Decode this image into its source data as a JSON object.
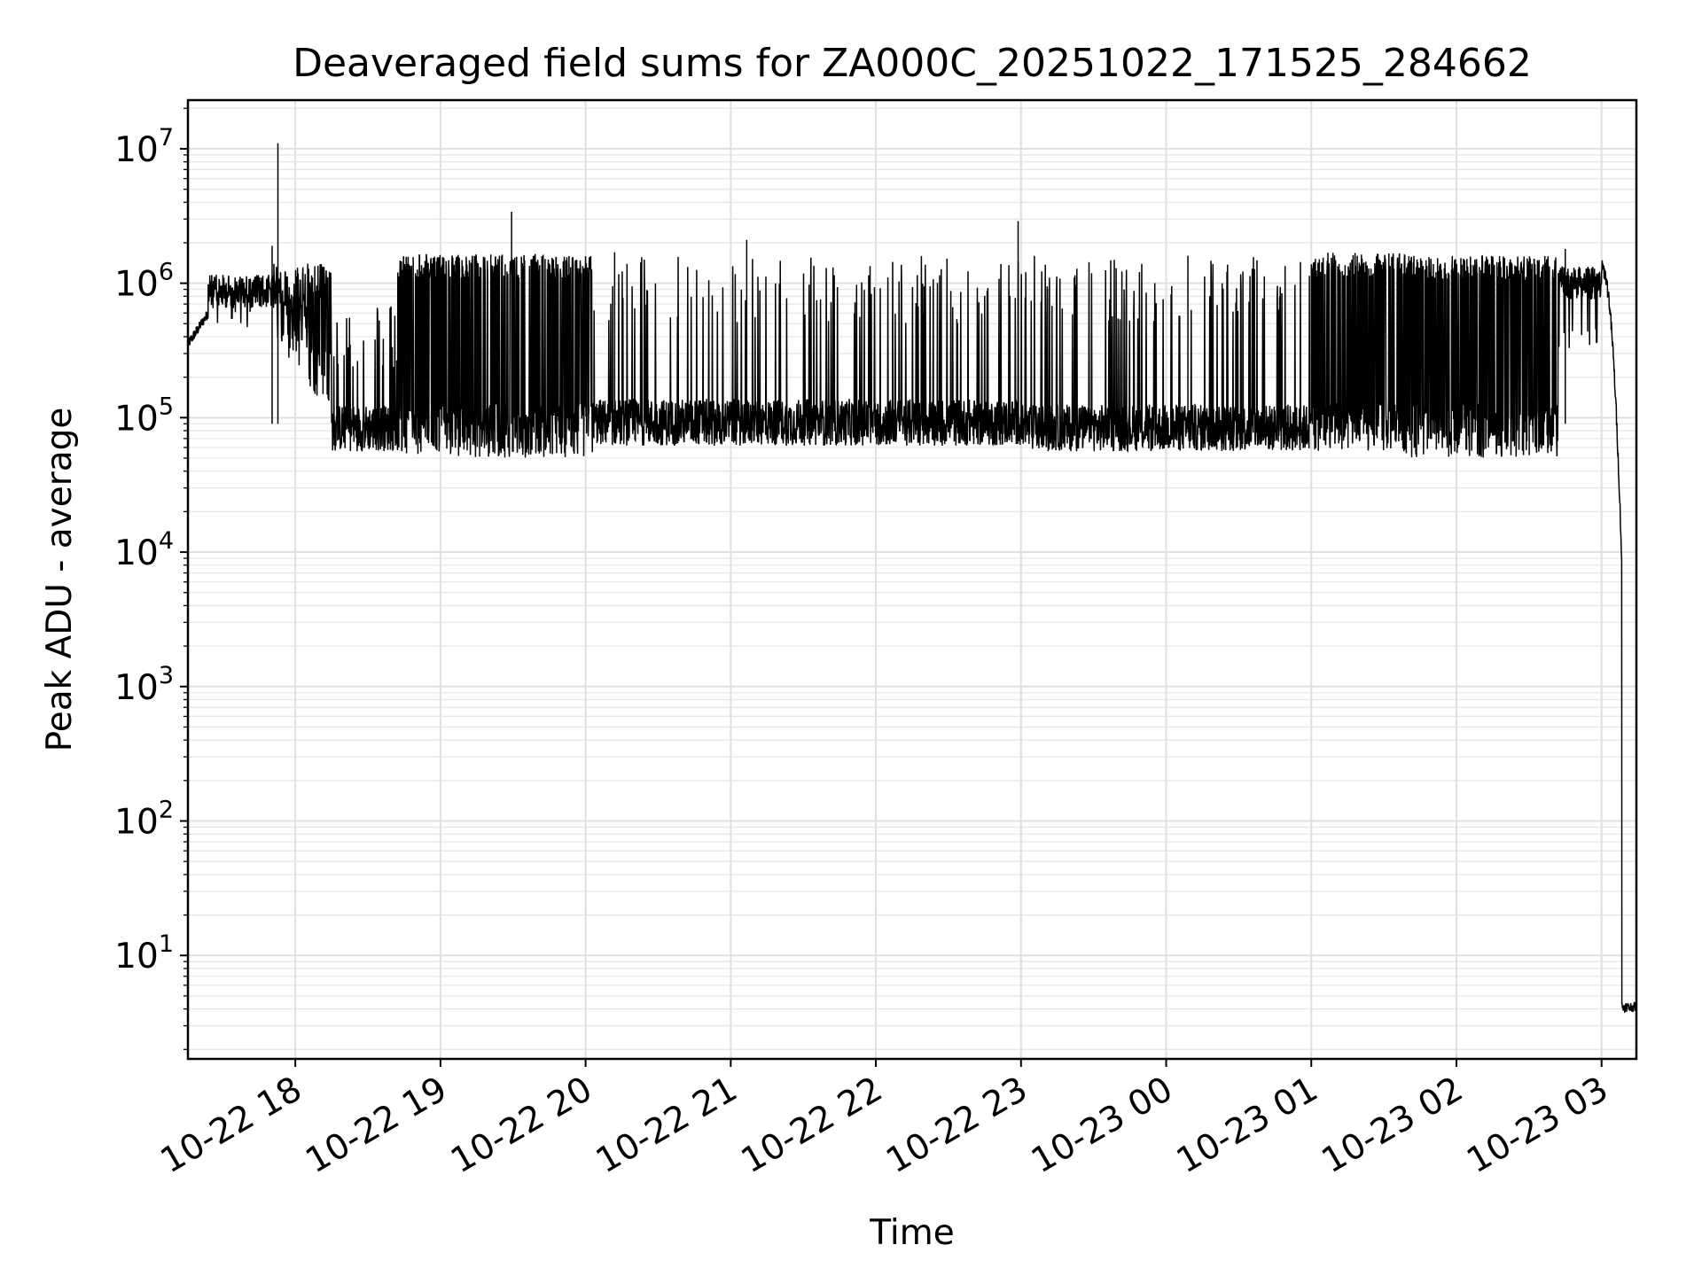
{
  "chart_data": {
    "type": "line",
    "title": "Deaveraged field sums for ZA000C_20251022_171525_284662",
    "xlabel": "Time",
    "ylabel": "Peak ADU - average",
    "yscale": "log",
    "ylim": [
      1.7,
      23000000
    ],
    "xlim_hours": [
      17.26,
      27.24
    ],
    "grid": true,
    "x_ticks": [
      {
        "label": "10-22 18",
        "hour": 18
      },
      {
        "label": "10-22 19",
        "hour": 19
      },
      {
        "label": "10-22 20",
        "hour": 20
      },
      {
        "label": "10-22 21",
        "hour": 21
      },
      {
        "label": "10-22 22",
        "hour": 22
      },
      {
        "label": "10-22 23",
        "hour": 23
      },
      {
        "label": "10-23 00",
        "hour": 24
      },
      {
        "label": "10-23 01",
        "hour": 25
      },
      {
        "label": "10-23 02",
        "hour": 26
      },
      {
        "label": "10-23 03",
        "hour": 27
      }
    ],
    "y_ticks": [
      {
        "base": "10",
        "exp": "1",
        "value": 10
      },
      {
        "base": "10",
        "exp": "2",
        "value": 100
      },
      {
        "base": "10",
        "exp": "3",
        "value": 1000
      },
      {
        "base": "10",
        "exp": "4",
        "value": 10000
      },
      {
        "base": "10",
        "exp": "5",
        "value": 100000
      },
      {
        "base": "10",
        "exp": "6",
        "value": 1000000
      },
      {
        "base": "10",
        "exp": "7",
        "value": 10000000
      }
    ],
    "series": [
      {
        "name": "deaveraged field sum",
        "color": "#000000",
        "segments": [
          {
            "start_hour": 17.26,
            "end_hour": 17.4,
            "low": 350000,
            "high": 600000,
            "pattern": "rising"
          },
          {
            "start_hour": 17.4,
            "end_hour": 17.85,
            "low": 450000,
            "high": 1300000,
            "pattern": "dense-high"
          },
          {
            "start_hour": 17.85,
            "end_hour": 18.25,
            "low": 100000,
            "high": 1400000,
            "pattern": "transition"
          },
          {
            "start_hour": 18.25,
            "end_hour": 18.7,
            "low": 50000,
            "high": 700000,
            "pattern": "base-spiky"
          },
          {
            "start_hour": 18.7,
            "end_hour": 20.05,
            "low": 45000,
            "high": 1650000,
            "pattern": "bimodal"
          },
          {
            "start_hour": 20.05,
            "end_hour": 23.0,
            "low": 55000,
            "high": 1600000,
            "pattern": "base-spiky"
          },
          {
            "start_hour": 23.0,
            "end_hour": 25.0,
            "low": 50000,
            "high": 1600000,
            "pattern": "base-spiky"
          },
          {
            "start_hour": 25.0,
            "end_hour": 25.65,
            "low": 50000,
            "high": 1700000,
            "pattern": "bimodal"
          },
          {
            "start_hour": 25.65,
            "end_hour": 26.7,
            "low": 45000,
            "high": 1600000,
            "pattern": "bimodal"
          },
          {
            "start_hour": 26.7,
            "end_hour": 27.0,
            "low": 300000,
            "high": 1500000,
            "pattern": "dense-high"
          },
          {
            "start_hour": 27.0,
            "end_hour": 27.14,
            "low": 8000,
            "high": 1300000,
            "pattern": "decay"
          },
          {
            "start_hour": 27.14,
            "end_hour": 27.24,
            "low": 3.8,
            "high": 4.5,
            "pattern": "floor"
          }
        ],
        "peaks": [
          {
            "hour": 17.88,
            "value": 11000000
          },
          {
            "hour": 19.49,
            "value": 3400000
          },
          {
            "hour": 21.11,
            "value": 2100000
          },
          {
            "hour": 22.98,
            "value": 2900000
          },
          {
            "hour": 17.84,
            "value": 1900000
          },
          {
            "hour": 20.2,
            "value": 1700000
          },
          {
            "hour": 24.15,
            "value": 1600000
          },
          {
            "hour": 26.75,
            "value": 1800000
          }
        ]
      }
    ]
  }
}
